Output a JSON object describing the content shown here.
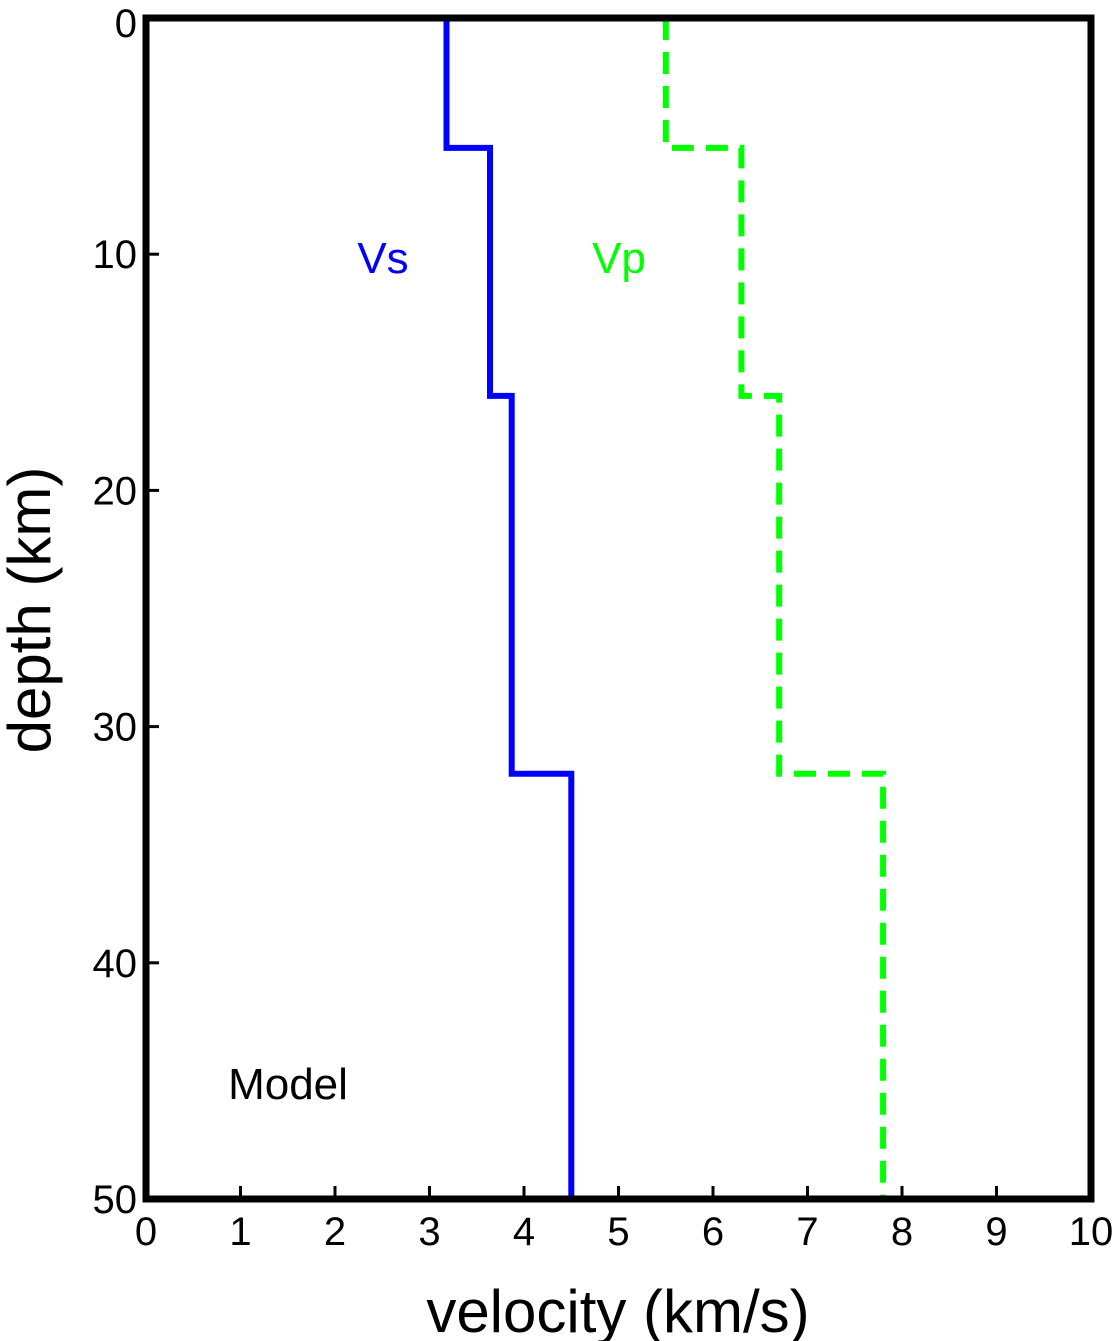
{
  "chart_data": {
    "type": "line",
    "xlabel": "velocity (km/s)",
    "ylabel": "depth (km)",
    "xlim": [
      0,
      10
    ],
    "ylim": [
      0,
      50
    ],
    "y_inverted": true,
    "x_ticks": [
      "0",
      "1",
      "2",
      "3",
      "4",
      "5",
      "6",
      "7",
      "8",
      "9",
      "10"
    ],
    "y_ticks": [
      "0",
      "10",
      "20",
      "30",
      "40",
      "50"
    ],
    "grid": false,
    "annotation": "Model",
    "series": [
      {
        "name": "Vs",
        "color": "#0000ff",
        "line_style": "solid",
        "step": true,
        "points": [
          {
            "velocity": 3.18,
            "depth": 0
          },
          {
            "velocity": 3.18,
            "depth": 5.5
          },
          {
            "velocity": 3.64,
            "depth": 5.5
          },
          {
            "velocity": 3.64,
            "depth": 16
          },
          {
            "velocity": 3.87,
            "depth": 16
          },
          {
            "velocity": 3.87,
            "depth": 32
          },
          {
            "velocity": 4.5,
            "depth": 32
          },
          {
            "velocity": 4.5,
            "depth": 50
          }
        ]
      },
      {
        "name": "Vp",
        "color": "#00ff00",
        "line_style": "dashed",
        "step": true,
        "points": [
          {
            "velocity": 5.5,
            "depth": 0
          },
          {
            "velocity": 5.5,
            "depth": 5.5
          },
          {
            "velocity": 6.3,
            "depth": 5.5
          },
          {
            "velocity": 6.3,
            "depth": 16
          },
          {
            "velocity": 6.7,
            "depth": 16
          },
          {
            "velocity": 6.7,
            "depth": 32
          },
          {
            "velocity": 7.8,
            "depth": 32
          },
          {
            "velocity": 7.8,
            "depth": 50
          }
        ]
      }
    ]
  }
}
